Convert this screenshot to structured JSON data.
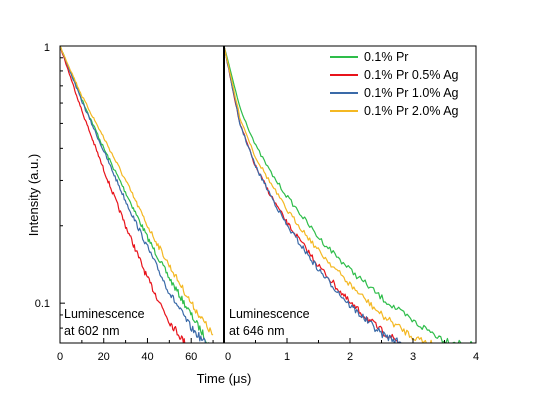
{
  "chart_data": {
    "type": "line",
    "xlabel": "Time (μs)",
    "ylabel": "Intensity (a.u.)",
    "ylim": [
      0.07,
      1
    ],
    "yscale": "log",
    "yticks": [
      0.1,
      1
    ],
    "ytick_labels": [
      "0.1",
      "1"
    ],
    "grid": false,
    "legend": {
      "placement": "top-right of right panel",
      "entries": [
        "0.1% Pr",
        "0.1% Pr 0.5% Ag",
        "0.1% Pr 1.0% Ag",
        "0.1% Pr 2.0% Ag"
      ]
    },
    "series_colors": [
      "#2ebd4a",
      "#e8131b",
      "#3a6aa8",
      "#f4b823"
    ],
    "panels": [
      {
        "annotation": [
          "Luminescence",
          "at 602 nm"
        ],
        "xlim": [
          0,
          75
        ],
        "xticks": [
          0,
          20,
          40,
          60
        ],
        "xtick_labels": [
          "0",
          "20",
          "40",
          "60"
        ],
        "series": [
          {
            "name": "0.1% Pr",
            "x": [
              0,
              10,
              20,
              30,
              40,
              50,
              60,
              68
            ],
            "y": [
              1.0,
              0.62,
              0.4,
              0.27,
              0.18,
              0.125,
              0.09,
              0.07
            ]
          },
          {
            "name": "0.1% Pr 0.5% Ag",
            "x": [
              0,
              10,
              20,
              30,
              40,
              50,
              60
            ],
            "y": [
              1.0,
              0.56,
              0.33,
              0.2,
              0.125,
              0.085,
              0.065
            ]
          },
          {
            "name": "0.1% Pr 1.0% Ag",
            "x": [
              0,
              10,
              20,
              30,
              40,
              50,
              60,
              70
            ],
            "y": [
              1.0,
              0.61,
              0.39,
              0.25,
              0.165,
              0.11,
              0.08,
              0.065
            ]
          },
          {
            "name": "0.1% Pr 2.0% Ag",
            "x": [
              0,
              10,
              20,
              30,
              40,
              50,
              60,
              70
            ],
            "y": [
              1.0,
              0.64,
              0.44,
              0.3,
              0.2,
              0.14,
              0.1,
              0.075
            ]
          }
        ]
      },
      {
        "annotation": [
          "Luminescence",
          "at 646 nm"
        ],
        "xlim": [
          0,
          4
        ],
        "xticks": [
          0,
          1,
          2,
          3,
          4
        ],
        "xtick_labels": [
          "0",
          "1",
          "2",
          "3",
          "4"
        ],
        "series": [
          {
            "name": "0.1% Pr",
            "x": [
              0,
              0.25,
              0.5,
              0.75,
              1,
              1.5,
              2,
              2.5,
              3,
              3.5,
              4
            ],
            "y": [
              1.0,
              0.58,
              0.41,
              0.32,
              0.26,
              0.18,
              0.135,
              0.105,
              0.085,
              0.072,
              0.068
            ]
          },
          {
            "name": "0.1% Pr 0.5% Ag",
            "x": [
              0,
              0.25,
              0.5,
              0.75,
              1,
              1.5,
              2,
              2.5,
              2.8
            ],
            "y": [
              1.0,
              0.5,
              0.34,
              0.26,
              0.205,
              0.14,
              0.1,
              0.078,
              0.07
            ]
          },
          {
            "name": "0.1% Pr 1.0% Ag",
            "x": [
              0,
              0.25,
              0.5,
              0.75,
              1,
              1.5,
              2,
              2.5,
              2.9
            ],
            "y": [
              1.0,
              0.5,
              0.34,
              0.26,
              0.2,
              0.135,
              0.098,
              0.076,
              0.068
            ]
          },
          {
            "name": "0.1% Pr 2.0% Ag",
            "x": [
              0,
              0.25,
              0.5,
              0.75,
              1,
              1.5,
              2,
              2.5,
              3,
              3.4
            ],
            "y": [
              1.0,
              0.53,
              0.37,
              0.29,
              0.23,
              0.16,
              0.118,
              0.09,
              0.074,
              0.068
            ]
          }
        ]
      }
    ]
  }
}
